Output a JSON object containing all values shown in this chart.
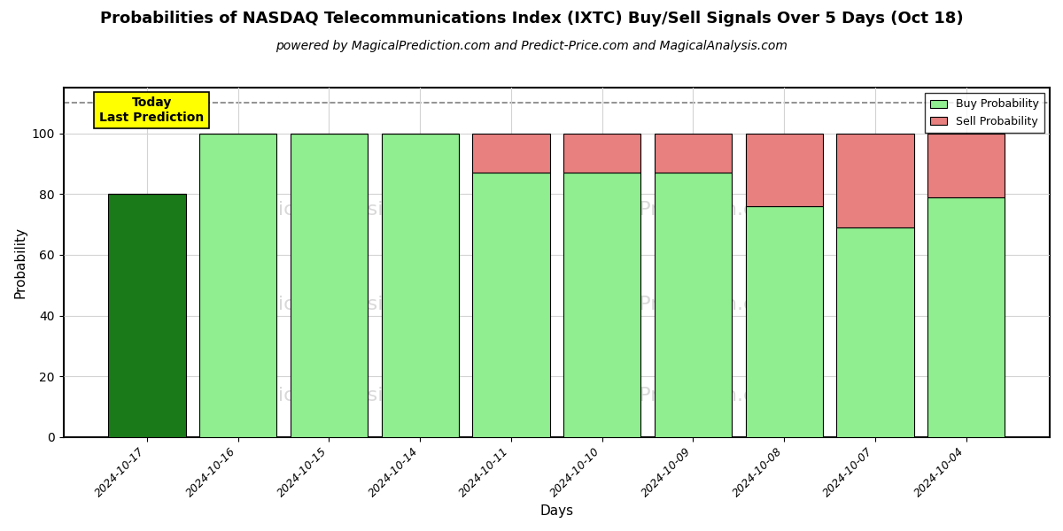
{
  "title": "Probabilities of NASDAQ Telecommunications Index (IXTC) Buy/Sell Signals Over 5 Days (Oct 18)",
  "subtitle": "powered by MagicalPrediction.com and Predict-Price.com and MagicalAnalysis.com",
  "xlabel": "Days",
  "ylabel": "Probability",
  "dates": [
    "2024-10-17",
    "2024-10-16",
    "2024-10-15",
    "2024-10-14",
    "2024-10-11",
    "2024-10-10",
    "2024-10-09",
    "2024-10-08",
    "2024-10-07",
    "2024-10-04"
  ],
  "buy_probs": [
    80,
    100,
    100,
    100,
    87,
    87,
    87,
    76,
    69,
    79
  ],
  "sell_probs": [
    0,
    0,
    0,
    0,
    13,
    13,
    13,
    24,
    31,
    21
  ],
  "buy_colors": [
    "#1a7a1a",
    "#90EE90",
    "#90EE90",
    "#90EE90",
    "#90EE90",
    "#90EE90",
    "#90EE90",
    "#90EE90",
    "#90EE90",
    "#90EE90"
  ],
  "sell_color": "#E88080",
  "today_label": "Today\nLast Prediction",
  "today_box_color": "#FFFF00",
  "legend_buy_color": "#90EE90",
  "legend_sell_color": "#E88080",
  "dashed_line_y": 110,
  "ylim": [
    0,
    115
  ],
  "yticks": [
    0,
    20,
    40,
    60,
    80,
    100
  ],
  "background_color": "#ffffff",
  "title_fontsize": 13,
  "subtitle_fontsize": 10,
  "figsize": [
    12.0,
    6.0
  ],
  "dpi": 100
}
